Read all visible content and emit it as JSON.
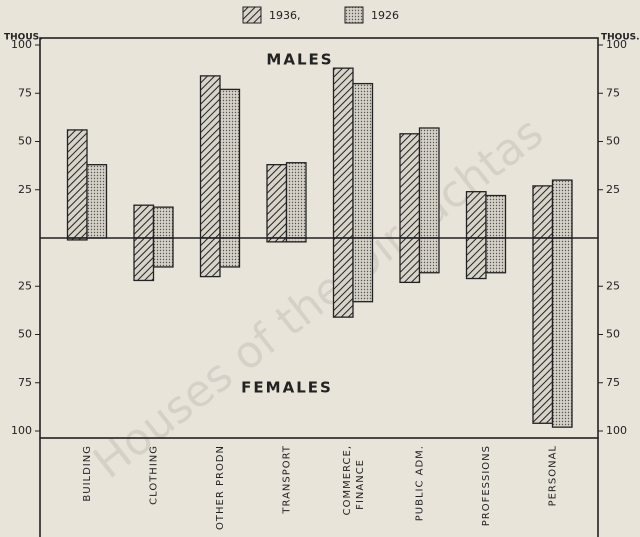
{
  "chart_data": {
    "type": "butterfly-bar",
    "legend": [
      "1936,",
      "1926"
    ],
    "upper_label": "MALES",
    "lower_label": "FEMALES",
    "axis_unit": "THOUS.",
    "watermark": "Houses of the Oireachtas",
    "categories": [
      "BUILDING",
      "CLOTHING",
      "OTHER PRODN",
      "TRANSPORT",
      "COMMERCE, FINANCE",
      "PUBLIC ADM.",
      "PROFESSIONS",
      "PERSONAL"
    ],
    "series": [
      {
        "name": "1936,",
        "pattern": "hatch",
        "males": [
          56,
          17,
          84,
          38,
          88,
          54,
          24,
          27
        ],
        "females": [
          1,
          22,
          20,
          2,
          41,
          23,
          21,
          96
        ]
      },
      {
        "name": "1926",
        "pattern": "dots",
        "males": [
          38,
          16,
          77,
          39,
          80,
          57,
          22,
          30
        ],
        "females": [
          0,
          15,
          15,
          2,
          33,
          18,
          18,
          98
        ]
      }
    ],
    "ylim": [
      0,
      100
    ],
    "male_ticks": [
      25,
      50,
      75,
      100
    ],
    "female_ticks": [
      25,
      50,
      75,
      100
    ]
  }
}
